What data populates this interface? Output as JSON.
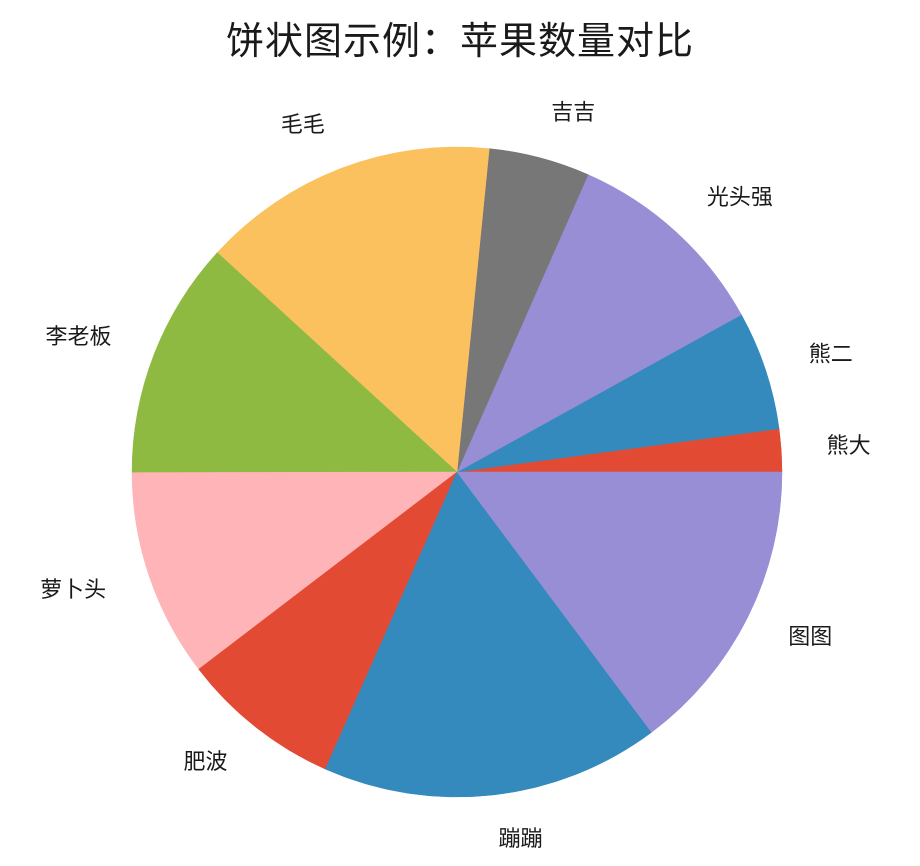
{
  "chart_data": {
    "type": "pie",
    "title": "饼状图示例：苹果数量对比",
    "start_angle_deg": 0,
    "direction": "counterclockwise",
    "slices": [
      {
        "label": "熊大",
        "value": 3.6,
        "color": "#e24a33"
      },
      {
        "label": "熊二",
        "value": 10.0,
        "color": "#348abd"
      },
      {
        "label": "光头强",
        "value": 17.5,
        "color": "#988ed5"
      },
      {
        "label": "吉吉",
        "value": 8.5,
        "color": "#777777"
      },
      {
        "label": "毛毛",
        "value": 25.0,
        "color": "#fbc15e"
      },
      {
        "label": "李老板",
        "value": 20.0,
        "color": "#8eba42"
      },
      {
        "label": "萝卜头",
        "value": 17.5,
        "color": "#ffb5b8"
      },
      {
        "label": "肥波",
        "value": 13.5,
        "color": "#e24a33"
      },
      {
        "label": "蹦蹦",
        "value": 28.5,
        "color": "#348abd"
      },
      {
        "label": "图图",
        "value": 25.0,
        "color": "#988ed5"
      }
    ]
  }
}
